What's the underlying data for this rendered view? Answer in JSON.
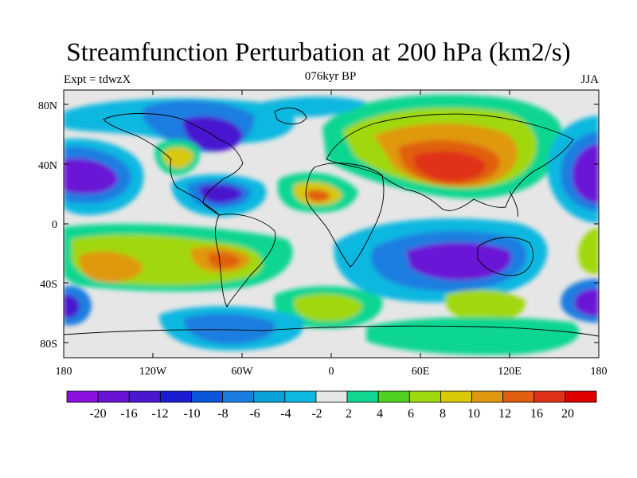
{
  "title": "Streamfunction Perturbation at 200 hPa (km2/s)",
  "subtitle_left": "Expt = tdwzX",
  "subtitle_center": "076kyr BP",
  "subtitle_right": "JJA",
  "y_axis_labels": [
    "80N",
    "40N",
    "0",
    "40S",
    "80S"
  ],
  "x_axis_labels": [
    "180",
    "120W",
    "60W",
    "0",
    "60E",
    "120E",
    "180"
  ],
  "colorbar": {
    "labels": [
      "-20",
      "-16",
      "-12",
      "-10",
      "-8",
      "-6",
      "-4",
      "-2",
      "2",
      "4",
      "6",
      "8",
      "10",
      "12",
      "16",
      "20"
    ],
    "colors": [
      "#8a10e0",
      "#6a12d6",
      "#4a16d0",
      "#1a1ed0",
      "#0a55d8",
      "#1a7ee0",
      "#0aa0d8",
      "#0ab8e0",
      "#e6e6e6",
      "#10d690",
      "#50d020",
      "#a0d810",
      "#d8c808",
      "#e09810",
      "#e06010",
      "#e03018",
      "#e00000"
    ]
  },
  "colors": {
    "land_outline": "#000000",
    "neutral_fill": "#e6e6e6"
  }
}
